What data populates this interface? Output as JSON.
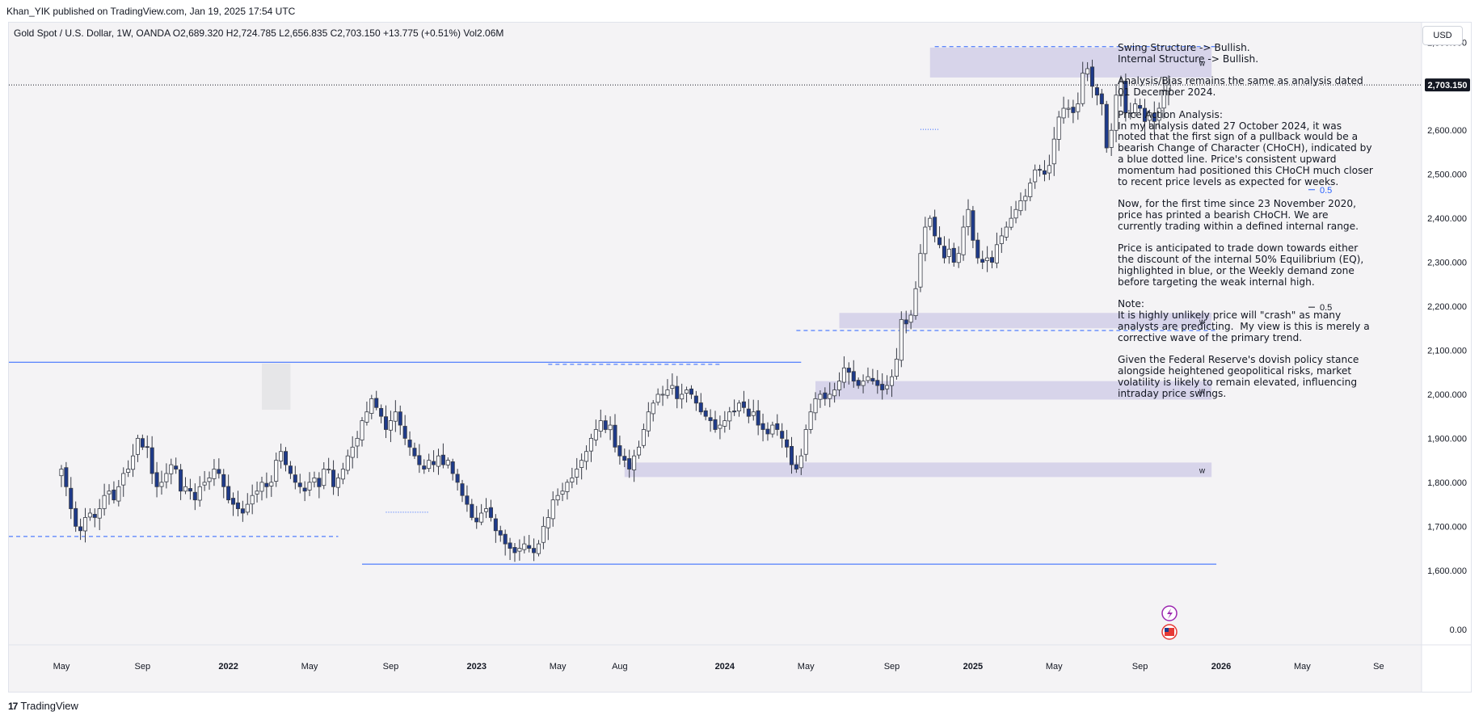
{
  "header": {
    "published": "Khan_YIK published on TradingView.com, Jan 19, 2025 17:54 UTC"
  },
  "symbol_line": "Gold Spot / U.S. Dollar, 1W, OANDA  O2,689.320  H2,724.785  L2,656.835  C2,703.150  +13.775 (+0.51%)  Vol2.06M",
  "currency_button": "USD",
  "footer": {
    "logo_mark": "17",
    "brand": "TradingView"
  },
  "colors": {
    "background": "#f4f3f5",
    "candle_up": "#ffffff",
    "candle_down": "#1e3a8a",
    "wick": "#363a45",
    "demand_zone": "#d7d4ea",
    "supply_highlight": "#e6e6e8",
    "level_line": "#2962ff",
    "last_price_tag": "#131722"
  },
  "annotation_text": "Swing Structure -> Bullish.\nInternal Structure -> Bullish.\n\nAnalysis/Bias remains the same as analysis dated\n01 December 2024.\n\nPrice Action Analysis:\nIn my analysis dated 27 October 2024, it was\nnoted that the first sign of a pullback would be a\nbearish Change of Character (CHoCH), indicated by\na blue dotted line. Price's consistent upward\nmomentum had positioned this CHoCH much closer\nto recent price levels as expected for weeks.\n\nNow, for the first time since 23 November 2020,\nprice has printed a bearish CHoCH. We are\ncurrently trading within a defined internal range.\n\nPrice is anticipated to trade down towards either\nthe discount of the internal 50% Equilibrium (EQ),\nhighlighted in blue, or the Weekly demand zone\nbefore targeting the weak internal high.\n\nNote:\nIt is highly unlikely price will \"crash\" as many\nanalysts are predicting.  My view is this is merely a\ncorrective wave of the primary trend.\n\nGiven the Federal Reserve's dovish policy stance\nalongside heightened geopolitical risks, market\nvolatility is likely to remain elevated, influencing\nintraday price swings.",
  "chart_data": {
    "type": "candlestick",
    "symbol": "Gold Spot / U.S. Dollar",
    "interval": "1W",
    "ohlc_last": {
      "open": 2689.32,
      "high": 2724.785,
      "low": 2656.835,
      "close": 2703.15,
      "change": 13.775,
      "change_pct": 0.51,
      "volume": "2.06M"
    },
    "last_price_label": "2,703.150",
    "ylim": [
      1550,
      2830
    ],
    "y_ticks": [
      {
        "value": 2800,
        "label": "2,800.000"
      },
      {
        "value": 2700,
        "label": "2,700.000"
      },
      {
        "value": 2600,
        "label": "2,600.000"
      },
      {
        "value": 2500,
        "label": "2,500.000"
      },
      {
        "value": 2400,
        "label": "2,400.000"
      },
      {
        "value": 2300,
        "label": "2,300.000"
      },
      {
        "value": 2200,
        "label": "2,200.000"
      },
      {
        "value": 2100,
        "label": "2,100.000"
      },
      {
        "value": 2000,
        "label": "2,000.000"
      },
      {
        "value": 1900,
        "label": "1,900.000"
      },
      {
        "value": 1800,
        "label": "1,800.000"
      },
      {
        "value": 1700,
        "label": "1,700.000"
      },
      {
        "value": 1600,
        "label": "1,600.000"
      }
    ],
    "volume_axis_label": "0.00",
    "x_ticks": [
      {
        "week": 0,
        "label": "May"
      },
      {
        "week": 17,
        "label": "Sep"
      },
      {
        "week": 35,
        "label": "2022"
      },
      {
        "week": 52,
        "label": "May"
      },
      {
        "week": 69,
        "label": "Sep"
      },
      {
        "week": 87,
        "label": "2023"
      },
      {
        "week": 104,
        "label": "May"
      },
      {
        "week": 117,
        "label": "Aug"
      },
      {
        "week": 139,
        "label": "2024"
      },
      {
        "week": 156,
        "label": "May"
      },
      {
        "week": 174,
        "label": "Sep"
      },
      {
        "week": 191,
        "label": "2025"
      },
      {
        "week": 208,
        "label": "May"
      },
      {
        "week": 226,
        "label": "Sep"
      },
      {
        "week": 243,
        "label": "2026"
      },
      {
        "week": 260,
        "label": "May"
      },
      {
        "week": 276,
        "label": "Se"
      }
    ],
    "week_range": [
      -11,
      285
    ],
    "weekly_closes": [
      1830,
      1790,
      1740,
      1700,
      1690,
      1720,
      1730,
      1720,
      1740,
      1770,
      1780,
      1760,
      1790,
      1820,
      1830,
      1860,
      1900,
      1880,
      1880,
      1820,
      1790,
      1800,
      1820,
      1840,
      1830,
      1780,
      1790,
      1780,
      1760,
      1790,
      1800,
      1810,
      1830,
      1820,
      1790,
      1760,
      1750,
      1740,
      1730,
      1750,
      1770,
      1780,
      1800,
      1790,
      1800,
      1850,
      1870,
      1840,
      1820,
      1800,
      1790,
      1780,
      1800,
      1810,
      1790,
      1830,
      1830,
      1790,
      1810,
      1830,
      1860,
      1880,
      1900,
      1940,
      1960,
      1990,
      1970,
      1950,
      1920,
      1940,
      1960,
      1930,
      1900,
      1880,
      1860,
      1840,
      1830,
      1850,
      1840,
      1860,
      1840,
      1850,
      1820,
      1800,
      1770,
      1750,
      1720,
      1710,
      1730,
      1740,
      1720,
      1690,
      1680,
      1660,
      1650,
      1640,
      1650,
      1660,
      1650,
      1640,
      1660,
      1700,
      1720,
      1760,
      1770,
      1780,
      1800,
      1810,
      1830,
      1850,
      1870,
      1900,
      1920,
      1940,
      1920,
      1930,
      1880,
      1860,
      1850,
      1830,
      1860,
      1880,
      1920,
      1960,
      1980,
      2000,
      2000,
      2010,
      2020,
      1990,
      2000,
      2010,
      2000,
      1980,
      1960,
      1950,
      1940,
      1920,
      1930,
      1940,
      1960,
      1960,
      1980,
      1970,
      1950,
      1960,
      1930,
      1920,
      1910,
      1930,
      1920,
      1900,
      1880,
      1840,
      1830,
      1860,
      1920,
      1960,
      1990,
      2000,
      1990,
      2000,
      2010,
      2030,
      2060,
      2050,
      2030,
      2020,
      2030,
      2040,
      2030,
      2020,
      2010,
      2020,
      2040,
      2080,
      2170,
      2160,
      2180,
      2240,
      2320,
      2380,
      2400,
      2360,
      2340,
      2310,
      2330,
      2300,
      2320,
      2380,
      2420,
      2350,
      2310,
      2300,
      2310,
      2300,
      2340,
      2360,
      2380,
      2400,
      2420,
      2440,
      2450,
      2480,
      2510,
      2510,
      2500,
      2520,
      2580,
      2630,
      2650,
      2650,
      2640,
      2660,
      2730,
      2740,
      2700,
      2680,
      2660,
      2560,
      2600,
      2680,
      2710,
      2640,
      2640,
      2660,
      2650,
      2620,
      2640,
      2620,
      2650,
      2690,
      2703.15
    ],
    "demand_zones": [
      {
        "label": "w",
        "top": 2788,
        "bottom": 2720
      },
      {
        "label": "w",
        "top": 2185,
        "bottom": 2150
      },
      {
        "label": "w",
        "top": 2030,
        "bottom": 1988
      },
      {
        "label": "w",
        "top": 1845,
        "bottom": 1812
      }
    ],
    "levels": [
      {
        "label": "0.5",
        "value": 2465,
        "style": "eq"
      },
      {
        "label": "0.5",
        "value": 2198,
        "style": "eq"
      },
      {
        "value": 2073,
        "style": "solid"
      },
      {
        "value": 1614,
        "style": "solid"
      },
      {
        "value": 2790,
        "style": "dashed"
      },
      {
        "value": 2145,
        "style": "dashed"
      },
      {
        "value": 2068,
        "style": "dashed"
      },
      {
        "value": 1677,
        "style": "dashed"
      },
      {
        "value": 1732,
        "style": "dotted"
      },
      {
        "value": 2602,
        "style": "dotted"
      }
    ],
    "legend": "none",
    "grid": false
  }
}
